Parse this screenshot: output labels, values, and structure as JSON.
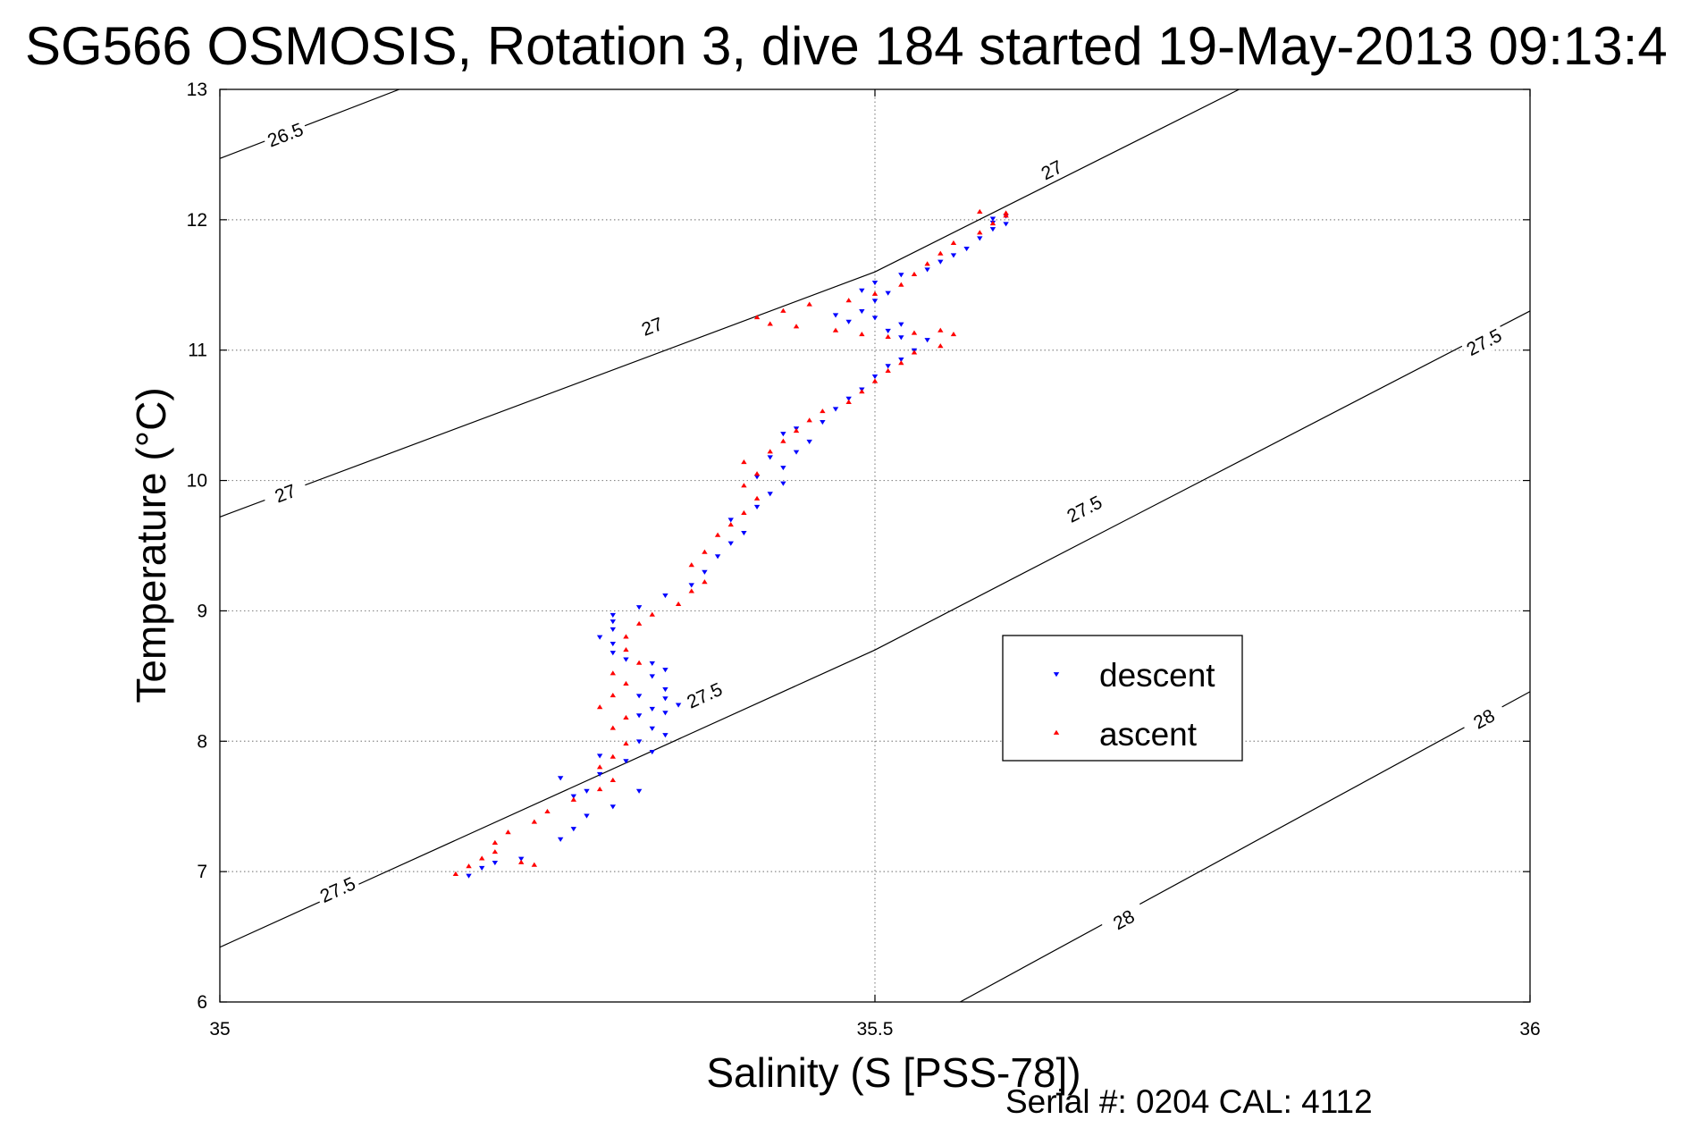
{
  "chart_data": {
    "type": "scatter",
    "title": "SG566 OSMOSIS, Rotation 3, dive 184 started 19-May-2013 09:13:4",
    "xlabel": "Salinity (S [PSS-78])",
    "ylabel": "Temperature (°C)",
    "xlim": [
      35,
      36
    ],
    "ylim": [
      6,
      13
    ],
    "xticks": [
      "35",
      "35.5",
      "36"
    ],
    "yticks": [
      "6",
      "7",
      "8",
      "9",
      "10",
      "11",
      "12",
      "13"
    ],
    "grid": true,
    "legend_position": "center-right",
    "footer": "Serial #: 0204  CAL: 4112",
    "density_contours": [
      {
        "level": "26.5",
        "points": [
          [
            35.0,
            12.47
          ],
          [
            35.137,
            13.0
          ]
        ],
        "labels": [
          {
            "text": "26.5",
            "s": 35.05,
            "t": 12.65
          }
        ]
      },
      {
        "level": "27",
        "points": [
          [
            35.0,
            9.72
          ],
          [
            35.5,
            11.6
          ],
          [
            35.778,
            13.0
          ]
        ],
        "labels": [
          {
            "text": "27",
            "s": 35.05,
            "t": 9.9
          },
          {
            "text": "27",
            "s": 35.33,
            "t": 11.18
          },
          {
            "text": "27",
            "s": 35.635,
            "t": 12.38
          }
        ]
      },
      {
        "level": "27.5",
        "points": [
          [
            35.0,
            6.42
          ],
          [
            35.5,
            8.7
          ],
          [
            36.0,
            11.3
          ]
        ],
        "labels": [
          {
            "text": "27.5",
            "s": 35.09,
            "t": 6.86
          },
          {
            "text": "27.5",
            "s": 35.37,
            "t": 8.35
          },
          {
            "text": "27.5",
            "s": 35.66,
            "t": 9.78
          },
          {
            "text": "27.5",
            "s": 35.965,
            "t": 11.06
          }
        ]
      },
      {
        "level": "28",
        "points": [
          [
            35.565,
            6.0
          ],
          [
            36.0,
            8.38
          ]
        ],
        "labels": [
          {
            "text": "28",
            "s": 35.69,
            "t": 6.63
          },
          {
            "text": "28",
            "s": 35.965,
            "t": 8.17
          }
        ]
      }
    ],
    "series": [
      {
        "name": "descent",
        "color": "#0000ff",
        "marker": "triangle-down",
        "points": [
          [
            35.19,
            6.97
          ],
          [
            35.2,
            7.03
          ],
          [
            35.21,
            7.07
          ],
          [
            35.23,
            7.1
          ],
          [
            35.26,
            7.25
          ],
          [
            35.27,
            7.33
          ],
          [
            35.28,
            7.43
          ],
          [
            35.3,
            7.5
          ],
          [
            35.27,
            7.58
          ],
          [
            35.28,
            7.62
          ],
          [
            35.32,
            7.62
          ],
          [
            35.26,
            7.72
          ],
          [
            35.29,
            7.75
          ],
          [
            35.31,
            7.85
          ],
          [
            35.29,
            7.89
          ],
          [
            35.33,
            7.92
          ],
          [
            35.32,
            8.0
          ],
          [
            35.34,
            8.05
          ],
          [
            35.33,
            8.1
          ],
          [
            35.32,
            8.2
          ],
          [
            35.34,
            8.22
          ],
          [
            35.33,
            8.25
          ],
          [
            35.35,
            8.28
          ],
          [
            35.34,
            8.33
          ],
          [
            35.32,
            8.35
          ],
          [
            35.34,
            8.4
          ],
          [
            35.33,
            8.5
          ],
          [
            35.34,
            8.55
          ],
          [
            35.33,
            8.6
          ],
          [
            35.31,
            8.63
          ],
          [
            35.3,
            8.68
          ],
          [
            35.3,
            8.75
          ],
          [
            35.29,
            8.8
          ],
          [
            35.3,
            8.86
          ],
          [
            35.3,
            8.92
          ],
          [
            35.3,
            8.97
          ],
          [
            35.32,
            9.03
          ],
          [
            35.34,
            9.12
          ],
          [
            35.36,
            9.2
          ],
          [
            35.37,
            9.3
          ],
          [
            35.38,
            9.42
          ],
          [
            35.39,
            9.52
          ],
          [
            35.4,
            9.6
          ],
          [
            35.39,
            9.7
          ],
          [
            35.41,
            9.8
          ],
          [
            35.42,
            9.9
          ],
          [
            35.43,
            9.98
          ],
          [
            35.41,
            10.03
          ],
          [
            35.43,
            10.1
          ],
          [
            35.42,
            10.18
          ],
          [
            35.44,
            10.22
          ],
          [
            35.45,
            10.3
          ],
          [
            35.43,
            10.36
          ],
          [
            35.44,
            10.4
          ],
          [
            35.46,
            10.45
          ],
          [
            35.47,
            10.55
          ],
          [
            35.48,
            10.63
          ],
          [
            35.49,
            10.7
          ],
          [
            35.5,
            10.8
          ],
          [
            35.51,
            10.88
          ],
          [
            35.52,
            10.93
          ],
          [
            35.53,
            11.0
          ],
          [
            35.54,
            11.08
          ],
          [
            35.52,
            11.1
          ],
          [
            35.51,
            11.15
          ],
          [
            35.52,
            11.2
          ],
          [
            35.5,
            11.25
          ],
          [
            35.48,
            11.22
          ],
          [
            35.47,
            11.27
          ],
          [
            35.49,
            11.3
          ],
          [
            35.5,
            11.38
          ],
          [
            35.51,
            11.44
          ],
          [
            35.49,
            11.46
          ],
          [
            35.5,
            11.52
          ],
          [
            35.52,
            11.58
          ],
          [
            35.54,
            11.62
          ],
          [
            35.55,
            11.68
          ],
          [
            35.56,
            11.73
          ],
          [
            35.57,
            11.78
          ],
          [
            35.58,
            11.86
          ],
          [
            35.59,
            11.93
          ],
          [
            35.59,
            11.98
          ],
          [
            35.6,
            12.03
          ],
          [
            35.6,
            11.97
          ],
          [
            35.59,
            12.01
          ]
        ]
      },
      {
        "name": "ascent",
        "color": "#ff0000",
        "marker": "triangle-up",
        "points": [
          [
            35.18,
            6.98
          ],
          [
            35.19,
            7.04
          ],
          [
            35.2,
            7.1
          ],
          [
            35.21,
            7.15
          ],
          [
            35.23,
            7.07
          ],
          [
            35.24,
            7.05
          ],
          [
            35.21,
            7.22
          ],
          [
            35.22,
            7.3
          ],
          [
            35.24,
            7.38
          ],
          [
            35.25,
            7.46
          ],
          [
            35.27,
            7.55
          ],
          [
            35.29,
            7.63
          ],
          [
            35.3,
            7.7
          ],
          [
            35.29,
            7.8
          ],
          [
            35.3,
            7.88
          ],
          [
            35.31,
            7.98
          ],
          [
            35.3,
            8.1
          ],
          [
            35.31,
            8.18
          ],
          [
            35.29,
            8.26
          ],
          [
            35.3,
            8.35
          ],
          [
            35.31,
            8.44
          ],
          [
            35.3,
            8.52
          ],
          [
            35.32,
            8.6
          ],
          [
            35.31,
            8.7
          ],
          [
            35.31,
            8.8
          ],
          [
            35.32,
            8.9
          ],
          [
            35.33,
            8.97
          ],
          [
            35.35,
            9.05
          ],
          [
            35.36,
            9.15
          ],
          [
            35.37,
            9.22
          ],
          [
            35.36,
            9.35
          ],
          [
            35.37,
            9.45
          ],
          [
            35.38,
            9.58
          ],
          [
            35.39,
            9.66
          ],
          [
            35.4,
            9.75
          ],
          [
            35.41,
            9.86
          ],
          [
            35.4,
            9.96
          ],
          [
            35.41,
            10.05
          ],
          [
            35.4,
            10.14
          ],
          [
            35.42,
            10.22
          ],
          [
            35.43,
            10.3
          ],
          [
            35.44,
            10.38
          ],
          [
            35.45,
            10.46
          ],
          [
            35.46,
            10.53
          ],
          [
            35.48,
            10.6
          ],
          [
            35.49,
            10.68
          ],
          [
            35.5,
            10.76
          ],
          [
            35.51,
            10.84
          ],
          [
            35.52,
            10.9
          ],
          [
            35.53,
            10.98
          ],
          [
            35.55,
            11.03
          ],
          [
            35.56,
            11.12
          ],
          [
            35.55,
            11.15
          ],
          [
            35.53,
            11.13
          ],
          [
            35.51,
            11.1
          ],
          [
            35.49,
            11.12
          ],
          [
            35.47,
            11.15
          ],
          [
            35.44,
            11.18
          ],
          [
            35.42,
            11.2
          ],
          [
            35.41,
            11.25
          ],
          [
            35.43,
            11.3
          ],
          [
            35.45,
            11.35
          ],
          [
            35.48,
            11.38
          ],
          [
            35.5,
            11.43
          ],
          [
            35.52,
            11.5
          ],
          [
            35.53,
            11.58
          ],
          [
            35.54,
            11.66
          ],
          [
            35.55,
            11.74
          ],
          [
            35.56,
            11.82
          ],
          [
            35.58,
            11.9
          ],
          [
            35.59,
            11.97
          ],
          [
            35.6,
            12.03
          ],
          [
            35.58,
            12.06
          ],
          [
            35.6,
            12.05
          ]
        ]
      }
    ]
  }
}
